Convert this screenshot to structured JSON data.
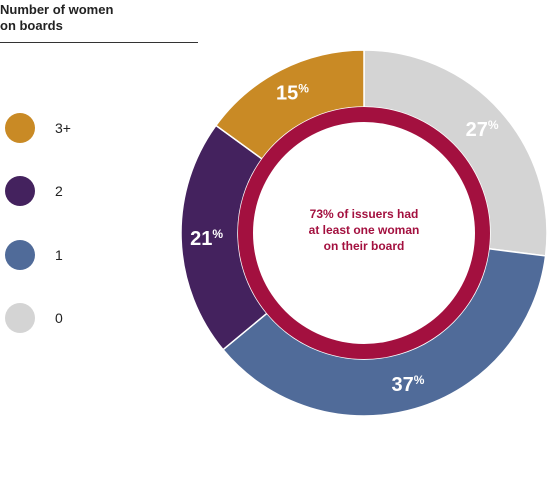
{
  "legend": {
    "title_line1": "Number of women",
    "title_line2": "on boards"
  },
  "chart_data": {
    "type": "pie",
    "categories": [
      "0",
      "1",
      "2",
      "3+"
    ],
    "values": [
      27,
      37,
      21,
      15
    ],
    "unit": "%",
    "colors": {
      "0": "#d4d4d4",
      "1": "#506b99",
      "2": "#44225e",
      "3+": "#c98a25"
    },
    "inner_ring_color": "#a3103f",
    "center_annotation": [
      "73% of issuers had",
      "at least one woman",
      "on their board"
    ]
  }
}
